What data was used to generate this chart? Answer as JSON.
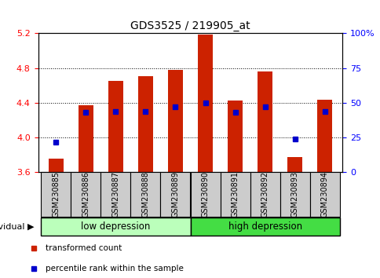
{
  "title": "GDS3525 / 219905_at",
  "samples": [
    "GSM230885",
    "GSM230886",
    "GSM230887",
    "GSM230888",
    "GSM230889",
    "GSM230890",
    "GSM230891",
    "GSM230892",
    "GSM230893",
    "GSM230894"
  ],
  "transformed_count": [
    3.76,
    4.37,
    4.65,
    4.71,
    4.78,
    5.19,
    4.43,
    4.76,
    3.78,
    4.44
  ],
  "percentile_rank": [
    22,
    43,
    44,
    44,
    47,
    50,
    43,
    47,
    24,
    44
  ],
  "ylim_left": [
    3.6,
    5.2
  ],
  "ylim_right": [
    0,
    100
  ],
  "yticks_left": [
    3.6,
    4.0,
    4.4,
    4.8,
    5.2
  ],
  "yticks_right": [
    0,
    25,
    50,
    75,
    100
  ],
  "ytick_labels_right": [
    "0",
    "25",
    "50",
    "75",
    "100%"
  ],
  "bar_color": "#cc2200",
  "marker_color": "#0000cc",
  "group1_label": "low depression",
  "group2_label": "high depression",
  "group1_color": "#bbffbb",
  "group2_color": "#44dd44",
  "legend_bar_label": "transformed count",
  "legend_marker_label": "percentile rank within the sample",
  "individual_label": "individual",
  "baseline": 3.6,
  "bar_width": 0.5,
  "n_samples": 10,
  "n_group1": 5,
  "n_group2": 5
}
